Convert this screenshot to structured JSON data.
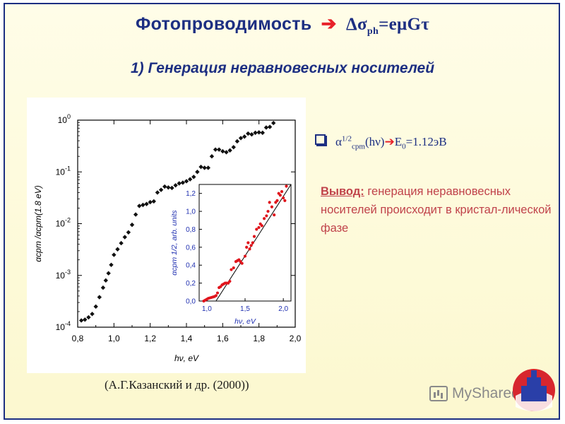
{
  "header": {
    "title_text": "Фотопроводимость",
    "title_arrow": "➔",
    "title_formula_prefix": "Δσ",
    "title_formula_sub": "ph",
    "title_formula_suffix": "=eμGτ",
    "subtitle": "1) Генерация неравновесных носителей"
  },
  "bullet": {
    "alpha": "α",
    "sup": "1/2",
    "sub": "cpm",
    "arg": "(hν)",
    "arrow": "➔",
    "e0": "E",
    "e0_sub": "0",
    "value": "=1.12эВ"
  },
  "conclusion": {
    "lead": "Вывод:",
    "text": "генерация неравновесных носителей происходит в кристал-лической фазе"
  },
  "citation": "(А.Г.Казанский и др. (2000))",
  "logo_text": "MyShared",
  "colors": {
    "title": "#1d2f82",
    "arrow": "#e8222a",
    "conclusion": "#c0424a",
    "main_points": "#111111",
    "inset_points": "#e0141c",
    "inset_axis": "#1f2fb0"
  },
  "chart_data": [
    {
      "type": "scatter",
      "title": "",
      "xlabel": "hν, eV",
      "ylabel": "αcpm /αcpm(1.8 eV)",
      "xlim": [
        0.8,
        2.0
      ],
      "ylim": [
        0.0001,
        1.0
      ],
      "y_scale": "log",
      "x_ticks": [
        "0,8",
        "1,0",
        "1,2",
        "1,4",
        "1,6",
        "1,8",
        "2,0"
      ],
      "y_ticks": [
        {
          "base": "10",
          "exp": "0"
        },
        {
          "base": "10",
          "exp": "-1"
        },
        {
          "base": "10",
          "exp": "-2"
        },
        {
          "base": "10",
          "exp": "-3"
        },
        {
          "base": "10",
          "exp": "-4"
        }
      ],
      "points_x": [
        0.82,
        0.84,
        0.86,
        0.88,
        0.9,
        0.92,
        0.94,
        0.955,
        0.97,
        0.985,
        1.0,
        1.02,
        1.04,
        1.06,
        1.08,
        1.1,
        1.12,
        1.14,
        1.16,
        1.18,
        1.2,
        1.22,
        1.24,
        1.26,
        1.28,
        1.3,
        1.32,
        1.34,
        1.36,
        1.38,
        1.4,
        1.42,
        1.44,
        1.46,
        1.48,
        1.5,
        1.52,
        1.54,
        1.56,
        1.58,
        1.6,
        1.62,
        1.64,
        1.66,
        1.68,
        1.7,
        1.72,
        1.74,
        1.76,
        1.78,
        1.8,
        1.82,
        1.84,
        1.86,
        1.88
      ],
      "points_y": [
        0.000135,
        0.00014,
        0.000155,
        0.00018,
        0.00025,
        0.00038,
        0.00058,
        0.0008,
        0.0011,
        0.0016,
        0.0025,
        0.0032,
        0.0042,
        0.0055,
        0.0068,
        0.0095,
        0.015,
        0.022,
        0.023,
        0.024,
        0.026,
        0.027,
        0.04,
        0.045,
        0.052,
        0.05,
        0.049,
        0.055,
        0.06,
        0.062,
        0.066,
        0.072,
        0.08,
        0.1,
        0.125,
        0.12,
        0.12,
        0.2,
        0.27,
        0.27,
        0.25,
        0.24,
        0.26,
        0.3,
        0.39,
        0.45,
        0.48,
        0.55,
        0.53,
        0.57,
        0.58,
        0.57,
        0.72,
        0.74,
        0.88
      ]
    },
    {
      "type": "scatter",
      "title": "",
      "xlabel": "hν, eV",
      "ylabel": "αcpm 1/2, arb. units",
      "xlim": [
        0.9,
        2.1
      ],
      "ylim": [
        0.0,
        1.3
      ],
      "x_ticks": [
        "1,0",
        "1,5",
        "2,0"
      ],
      "y_ticks": [
        "0,0",
        "0,2",
        "0,4",
        "0,6",
        "0,8",
        "1,0",
        "1,2"
      ],
      "fit_line": {
        "x": [
          1.12,
          2.1
        ],
        "y": [
          0.0,
          1.3
        ]
      },
      "points_x": [
        0.96,
        0.98,
        1.0,
        1.02,
        1.04,
        1.06,
        1.08,
        1.1,
        1.12,
        1.14,
        1.16,
        1.18,
        1.2,
        1.22,
        1.24,
        1.26,
        1.28,
        1.3,
        1.32,
        1.35,
        1.38,
        1.4,
        1.42,
        1.44,
        1.46,
        1.5,
        1.52,
        1.54,
        1.56,
        1.58,
        1.6,
        1.62,
        1.65,
        1.68,
        1.7,
        1.72,
        1.75,
        1.78,
        1.8,
        1.82,
        1.85,
        1.88,
        1.9,
        1.92,
        1.94,
        1.96,
        1.98,
        2.0,
        2.02,
        2.04
      ],
      "points_y": [
        0.0,
        0.01,
        0.02,
        0.03,
        0.035,
        0.04,
        0.045,
        0.05,
        0.06,
        0.09,
        0.15,
        0.16,
        0.18,
        0.19,
        0.2,
        0.2,
        0.2,
        0.22,
        0.35,
        0.37,
        0.44,
        0.45,
        0.46,
        0.44,
        0.42,
        0.5,
        0.6,
        0.65,
        0.58,
        0.62,
        0.65,
        0.72,
        0.8,
        0.82,
        0.86,
        0.84,
        0.92,
        0.95,
        1.0,
        1.1,
        1.05,
        0.96,
        1.1,
        1.12,
        1.2,
        1.18,
        1.22,
        1.15,
        1.12,
        1.28
      ]
    }
  ]
}
